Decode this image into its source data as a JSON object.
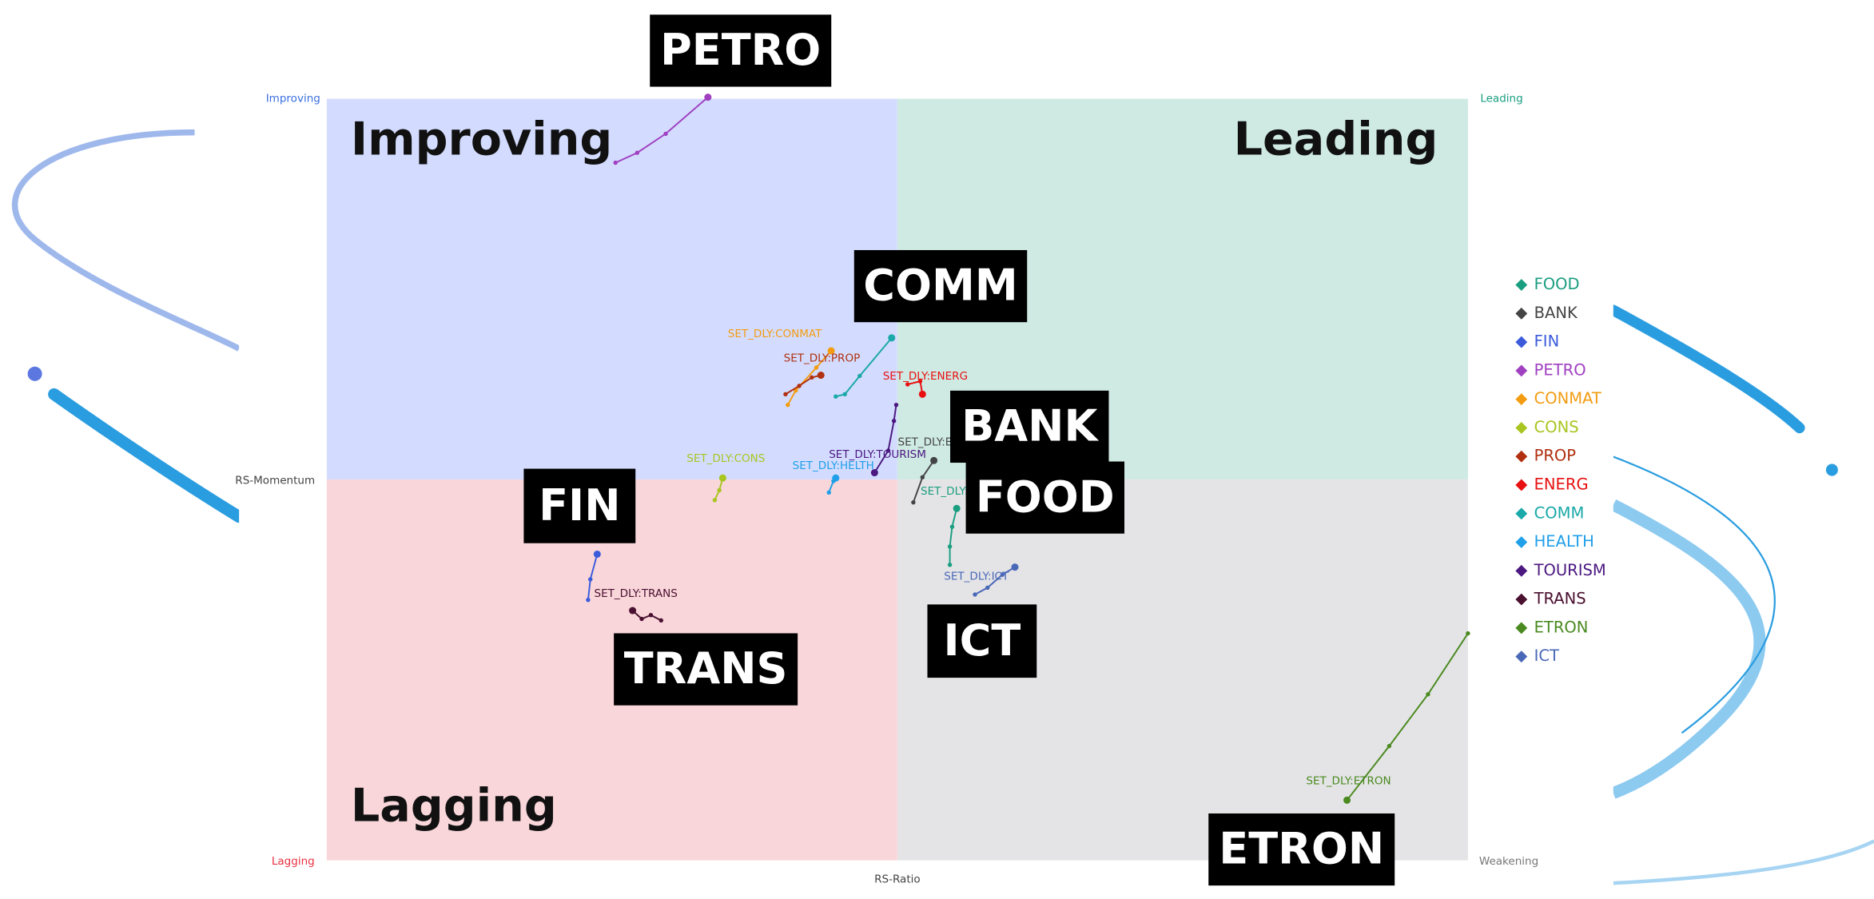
{
  "chart_data": {
    "type": "rrg",
    "x_label": "RS-Ratio",
    "y_label": "RS-Momentum",
    "xlim": [
      95,
      105
    ],
    "ylim": [
      95,
      105
    ],
    "quadrants": [
      {
        "name": "Improving",
        "color": "#d3dcff",
        "text_color": "#3b6fe0"
      },
      {
        "name": "Leading",
        "color": "#cfeae3",
        "text_color": "#1a9e80"
      },
      {
        "name": "Lagging",
        "color": "#f9d6da",
        "text_color": "#e83040"
      },
      {
        "name": "Weakening",
        "color": "#e4e4e6",
        "text_color": "#777777"
      }
    ],
    "annotations": [
      "PETRO",
      "COMM",
      "BANK",
      "FOOD",
      "FIN",
      "TRANS",
      "ICT",
      "ETRON"
    ],
    "series": [
      {
        "name": "FOOD",
        "color": "#1a9e80",
        "label": "SET_DLY:",
        "x": [
          100.46,
          100.46,
          100.48,
          100.52
        ],
        "values": [
          98.88,
          99.12,
          99.38,
          99.62
        ]
      },
      {
        "name": "BANK",
        "color": "#444444",
        "label": "SET_DLY:BA",
        "x": [
          100.14,
          100.22,
          100.32
        ],
        "values": [
          99.7,
          100.03,
          100.25
        ]
      },
      {
        "name": "FIN",
        "color": "#3b5bdb",
        "x": [
          97.29,
          97.31,
          97.37
        ],
        "values": [
          98.42,
          98.69,
          99.02
        ]
      },
      {
        "name": "PETRO",
        "color": "#a040c0",
        "x": [
          97.53,
          97.72,
          97.97,
          98.34
        ],
        "values": [
          104.16,
          104.29,
          104.54,
          105.02
        ]
      },
      {
        "name": "CONMAT",
        "color": "#f39c12",
        "label": "SET_DLY:CONMAT",
        "x": [
          99.04,
          99.11,
          99.29,
          99.42
        ],
        "values": [
          100.98,
          101.17,
          101.47,
          101.69
        ]
      },
      {
        "name": "CONS",
        "color": "#a8c520",
        "label": "SET_DLY:CONS",
        "x": [
          98.4,
          98.44,
          98.47
        ],
        "values": [
          99.73,
          99.86,
          100.02
        ]
      },
      {
        "name": "PROP",
        "color": "#b03010",
        "label": "SET_DLY:PROP",
        "x": [
          99.02,
          99.14,
          99.25,
          99.33
        ],
        "values": [
          101.12,
          101.23,
          101.34,
          101.37
        ]
      },
      {
        "name": "ENERG",
        "color": "#e81010",
        "label": "SET_DLY:ENERG",
        "x": [
          100.09,
          100.2,
          100.22
        ],
        "values": [
          101.25,
          101.29,
          101.12
        ]
      },
      {
        "name": "COMM",
        "color": "#1aa8a8",
        "x": [
          99.46,
          99.54,
          99.67,
          99.95
        ],
        "values": [
          101.09,
          101.12,
          101.36,
          101.86
        ]
      },
      {
        "name": "HEALTH",
        "color": "#20a0e8",
        "label": "SET_DLY:HELTH",
        "x": [
          99.4,
          99.44,
          99.46
        ],
        "values": [
          99.83,
          99.98,
          100.02
        ]
      },
      {
        "name": "TOURISM",
        "color": "#4b1880",
        "label": "SET_DLY:TOURISM",
        "x": [
          99.99,
          99.97,
          99.92,
          99.8
        ],
        "values": [
          100.98,
          100.77,
          100.38,
          100.09
        ]
      },
      {
        "name": "TRANS",
        "color": "#4a1030",
        "label": "SET_DLY:TRANS",
        "x": [
          97.93,
          97.84,
          97.76,
          97.68
        ],
        "values": [
          98.15,
          98.22,
          98.17,
          98.28
        ]
      },
      {
        "name": "ETRON",
        "color": "#4a8a20",
        "label": "SET_DLY:ETRON",
        "x": [
          105.0,
          104.65,
          104.31,
          103.94
        ],
        "values": [
          97.98,
          97.18,
          96.5,
          95.79
        ]
      },
      {
        "name": "ICT",
        "color": "#4a68b8",
        "label": "SET_DLY:ICT",
        "x": [
          100.68,
          100.79,
          100.92,
          101.03
        ],
        "values": [
          98.49,
          98.58,
          98.75,
          98.85
        ]
      }
    ]
  }
}
